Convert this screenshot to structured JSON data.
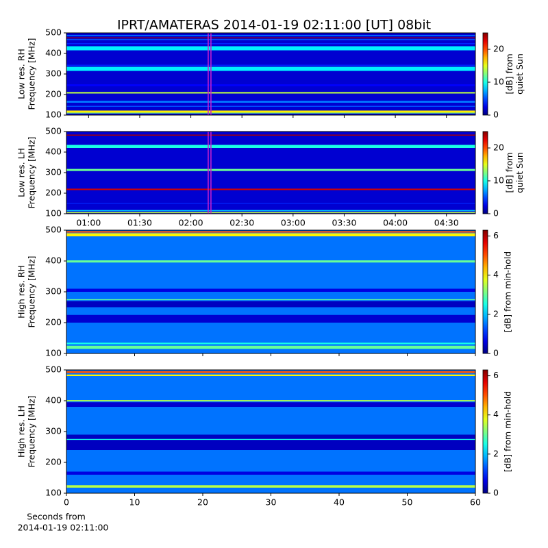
{
  "title": "IPRT/AMATERAS 2014-01-19 02:11:00 [UT]   08bit",
  "chart_data": [
    {
      "type": "spectrogram",
      "ylabel": [
        "Low res. RH",
        "Frequency [MHz]"
      ],
      "ylim": [
        100,
        500
      ],
      "yticks": [
        100,
        200,
        300,
        400,
        500
      ],
      "xlim": [
        47,
        287
      ],
      "xticks": [
        60,
        90,
        120,
        150,
        180,
        210,
        240,
        270
      ],
      "xticklabels": false,
      "marker": 131,
      "marker_color": "#cc22cc",
      "colorbar_label": [
        "[dB] from",
        "quiet Sun"
      ],
      "clim": [
        0,
        25
      ],
      "cticks": [
        0,
        10,
        20
      ],
      "bands": [
        [
          100,
          500
        ],
        [
          108,
          112
        ],
        [
          112,
          122
        ],
        [
          140,
          145
        ],
        [
          160,
          170
        ],
        [
          205,
          212
        ],
        [
          240,
          250
        ],
        [
          315,
          335
        ],
        [
          340,
          345
        ],
        [
          415,
          435
        ],
        [
          445,
          450
        ],
        [
          465,
          470
        ],
        [
          474,
          478
        ],
        [
          485,
          490
        ]
      ],
      "values": [
        2,
        12,
        16,
        5,
        6,
        14,
        3,
        9,
        4,
        9,
        4,
        5,
        24,
        6
      ]
    },
    {
      "type": "spectrogram",
      "ylabel": [
        "Low res. LH",
        "Frequency [MHz]"
      ],
      "ylim": [
        100,
        500
      ],
      "yticks": [
        100,
        200,
        300,
        400,
        500
      ],
      "xlim": [
        47,
        287
      ],
      "xticks": [
        {
          "value": 60,
          "label": "01:00"
        },
        {
          "value": 90,
          "label": "01:30"
        },
        {
          "value": 120,
          "label": "02:00"
        },
        {
          "value": 150,
          "label": "02:30"
        },
        {
          "value": 180,
          "label": "03:00"
        },
        {
          "value": 210,
          "label": "03:30"
        },
        {
          "value": 240,
          "label": "04:00"
        },
        {
          "value": 270,
          "label": "04:30"
        }
      ],
      "marker": 131,
      "marker_color": "#cc22cc",
      "colorbar_label": [
        "[dB] from",
        "quiet Sun"
      ],
      "clim": [
        0,
        25
      ],
      "cticks": [
        0,
        10,
        20
      ],
      "bands": [
        [
          100,
          500
        ],
        [
          103,
          108
        ],
        [
          112,
          118
        ],
        [
          148,
          152
        ],
        [
          215,
          222
        ],
        [
          308,
          318
        ],
        [
          420,
          435
        ],
        [
          480,
          485
        ]
      ],
      "values": [
        2,
        14,
        8,
        4,
        23,
        12,
        10,
        24
      ]
    },
    {
      "type": "spectrogram",
      "ylabel": [
        "High res. RH",
        "Frequency [MHz]"
      ],
      "ylim": [
        100,
        500
      ],
      "yticks": [
        100,
        200,
        300,
        400,
        500
      ],
      "xlim": [
        0,
        60
      ],
      "xticks": [
        0,
        10,
        20,
        30,
        40,
        50,
        60
      ],
      "xticklabels": false,
      "colorbar_label": [
        "[dB] from min-hold"
      ],
      "clim": [
        0,
        6.3
      ],
      "cticks": [
        0,
        2,
        4,
        6
      ],
      "bands": [
        [
          100,
          500
        ],
        [
          115,
          125
        ],
        [
          130,
          135
        ],
        [
          200,
          225
        ],
        [
          250,
          270
        ],
        [
          273,
          276
        ],
        [
          300,
          310
        ],
        [
          395,
          402
        ],
        [
          480,
          490
        ],
        [
          492,
          497
        ]
      ],
      "values": [
        1.5,
        3,
        2.5,
        0.5,
        0.4,
        3,
        0.6,
        3,
        4,
        5
      ]
    },
    {
      "type": "spectrogram",
      "ylabel": [
        "High res. LH",
        "Frequency [MHz]"
      ],
      "ylim": [
        100,
        500
      ],
      "yticks": [
        100,
        200,
        300,
        400,
        500
      ],
      "xlim": [
        0,
        60
      ],
      "xticks": [
        0,
        10,
        20,
        30,
        40,
        50,
        60
      ],
      "xlabel": [
        "Seconds from",
        "2014-01-19 02:11:00"
      ],
      "colorbar_label": [
        "[dB] from min-hold"
      ],
      "clim": [
        0,
        6.3
      ],
      "cticks": [
        0,
        2,
        4,
        6
      ],
      "bands": [
        [
          100,
          500
        ],
        [
          118,
          126
        ],
        [
          160,
          170
        ],
        [
          240,
          290
        ],
        [
          273,
          276
        ],
        [
          380,
          395
        ],
        [
          398,
          402
        ],
        [
          480,
          485
        ],
        [
          490,
          496
        ]
      ],
      "values": [
        1.5,
        3.5,
        0.6,
        0.4,
        2.5,
        0.5,
        3.5,
        4,
        5
      ]
    }
  ]
}
